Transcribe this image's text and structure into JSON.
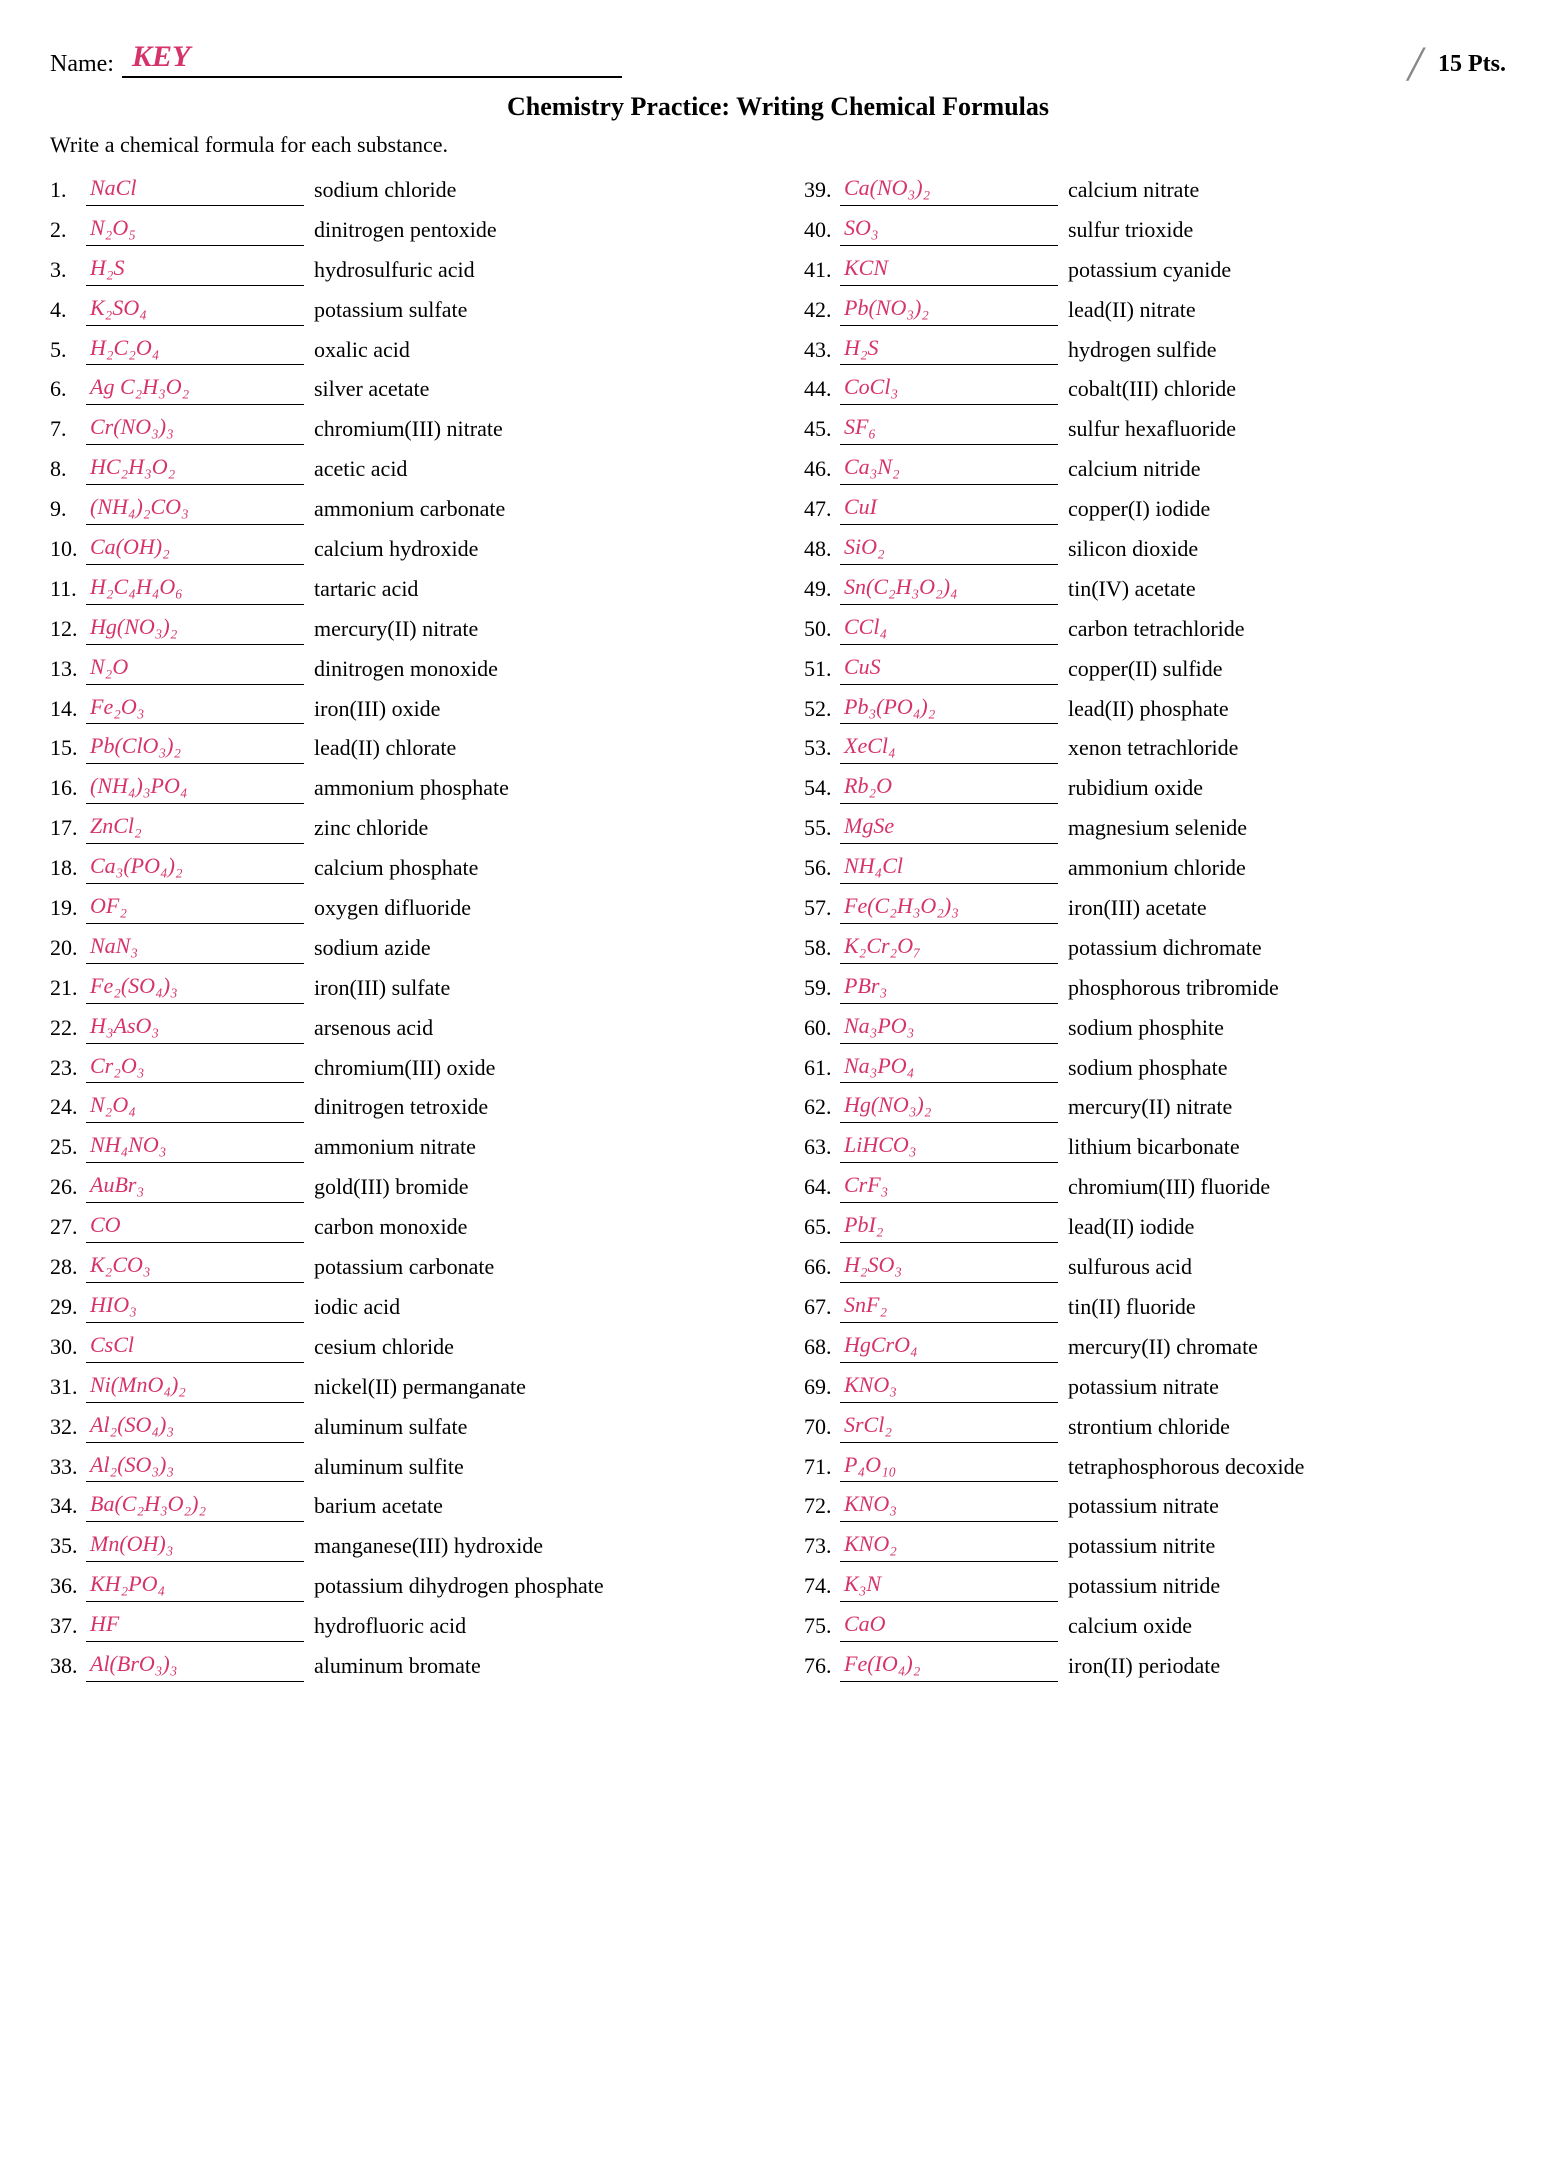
{
  "header": {
    "name_label": "Name:",
    "name_value": "KEY",
    "points": "15 Pts.",
    "title": "Chemistry Practice: Writing Chemical Formulas",
    "instruction": "Write a chemical formula for each substance."
  },
  "colors": {
    "handwriting": "#d6336c",
    "text": "#000000",
    "background": "#ffffff"
  },
  "left": [
    {
      "n": "1.",
      "a": "NaCl",
      "c": "sodium chloride"
    },
    {
      "n": "2.",
      "a": "N₂O₅",
      "c": "dinitrogen pentoxide"
    },
    {
      "n": "3.",
      "a": "H₂S",
      "c": "hydrosulfuric acid"
    },
    {
      "n": "4.",
      "a": "K₂SO₄",
      "c": "potassium sulfate"
    },
    {
      "n": "5.",
      "a": "H₂C₂O₄",
      "c": "oxalic acid"
    },
    {
      "n": "6.",
      "a": "Ag C₂H₃O₂",
      "c": "silver acetate"
    },
    {
      "n": "7.",
      "a": "Cr(NO₃)₃",
      "c": "chromium(III) nitrate"
    },
    {
      "n": "8.",
      "a": "HC₂H₃O₂",
      "c": "acetic acid"
    },
    {
      "n": "9.",
      "a": "(NH₄)₂CO₃",
      "c": "ammonium carbonate"
    },
    {
      "n": "10.",
      "a": "Ca(OH)₂",
      "c": "calcium hydroxide"
    },
    {
      "n": "11.",
      "a": "H₂C₄H₄O₆",
      "c": "tartaric acid"
    },
    {
      "n": "12.",
      "a": "Hg(NO₃)₂",
      "c": "mercury(II) nitrate"
    },
    {
      "n": "13.",
      "a": "N₂O",
      "c": "dinitrogen monoxide"
    },
    {
      "n": "14.",
      "a": "Fe₂O₃",
      "c": "iron(III) oxide"
    },
    {
      "n": "15.",
      "a": "Pb(ClO₃)₂",
      "c": "lead(II) chlorate"
    },
    {
      "n": "16.",
      "a": "(NH₄)₃PO₄",
      "c": "ammonium phosphate"
    },
    {
      "n": "17.",
      "a": "ZnCl₂",
      "c": "zinc chloride"
    },
    {
      "n": "18.",
      "a": "Ca₃(PO₄)₂",
      "c": "calcium phosphate"
    },
    {
      "n": "19.",
      "a": "OF₂",
      "c": "oxygen difluoride"
    },
    {
      "n": "20.",
      "a": "NaN₃",
      "c": "sodium azide"
    },
    {
      "n": "21.",
      "a": "Fe₂(SO₄)₃",
      "c": "iron(III) sulfate"
    },
    {
      "n": "22.",
      "a": "H₃AsO₃",
      "c": "arsenous acid"
    },
    {
      "n": "23.",
      "a": "Cr₂O₃",
      "c": "chromium(III) oxide"
    },
    {
      "n": "24.",
      "a": "N₂O₄",
      "c": "dinitrogen tetroxide"
    },
    {
      "n": "25.",
      "a": "NH₄NO₃",
      "c": "ammonium nitrate"
    },
    {
      "n": "26.",
      "a": "AuBr₃",
      "c": "gold(III) bromide"
    },
    {
      "n": "27.",
      "a": "CO",
      "c": "carbon monoxide"
    },
    {
      "n": "28.",
      "a": "K₂CO₃",
      "c": "potassium carbonate"
    },
    {
      "n": "29.",
      "a": "HIO₃",
      "c": "iodic acid"
    },
    {
      "n": "30.",
      "a": "CsCl",
      "c": "cesium chloride"
    },
    {
      "n": "31.",
      "a": "Ni(MnO₄)₂",
      "c": "nickel(II) permanganate"
    },
    {
      "n": "32.",
      "a": "Al₂(SO₄)₃",
      "c": "aluminum sulfate"
    },
    {
      "n": "33.",
      "a": "Al₂(SO₃)₃",
      "c": "aluminum sulfite"
    },
    {
      "n": "34.",
      "a": "Ba(C₂H₃O₂)₂",
      "c": "barium acetate"
    },
    {
      "n": "35.",
      "a": "Mn(OH)₃",
      "c": "manganese(III) hydroxide"
    },
    {
      "n": "36.",
      "a": "KH₂PO₄",
      "c": "potassium dihydrogen phosphate"
    },
    {
      "n": "37.",
      "a": "HF",
      "c": "hydrofluoric acid"
    },
    {
      "n": "38.",
      "a": "Al(BrO₃)₃",
      "c": "aluminum bromate"
    }
  ],
  "right": [
    {
      "n": "39.",
      "a": "Ca(NO₃)₂",
      "c": "calcium nitrate"
    },
    {
      "n": "40.",
      "a": "SO₃",
      "c": "sulfur trioxide"
    },
    {
      "n": "41.",
      "a": "KCN",
      "c": "potassium cyanide"
    },
    {
      "n": "42.",
      "a": "Pb(NO₃)₂",
      "c": "lead(II) nitrate"
    },
    {
      "n": "43.",
      "a": "H₂S",
      "c": "hydrogen sulfide"
    },
    {
      "n": "44.",
      "a": "CoCl₃",
      "c": "cobalt(III) chloride"
    },
    {
      "n": "45.",
      "a": "SF₆",
      "c": "sulfur hexafluoride"
    },
    {
      "n": "46.",
      "a": "Ca₃N₂",
      "c": "calcium nitride"
    },
    {
      "n": "47.",
      "a": "CuI",
      "c": "copper(I) iodide"
    },
    {
      "n": "48.",
      "a": "SiO₂",
      "c": "silicon dioxide"
    },
    {
      "n": "49.",
      "a": "Sn(C₂H₃O₂)₄",
      "c": "tin(IV) acetate"
    },
    {
      "n": "50.",
      "a": "CCl₄",
      "c": "carbon tetrachloride"
    },
    {
      "n": "51.",
      "a": "CuS",
      "c": "copper(II) sulfide"
    },
    {
      "n": "52.",
      "a": "Pb₃(PO₄)₂",
      "c": "lead(II) phosphate"
    },
    {
      "n": "53.",
      "a": "XeCl₄",
      "c": "xenon tetrachloride"
    },
    {
      "n": "54.",
      "a": "Rb₂O",
      "c": "rubidium oxide"
    },
    {
      "n": "55.",
      "a": "MgSe",
      "c": "magnesium selenide"
    },
    {
      "n": "56.",
      "a": "NH₄Cl",
      "c": "ammonium chloride"
    },
    {
      "n": "57.",
      "a": "Fe(C₂H₃O₂)₃",
      "c": "iron(III) acetate"
    },
    {
      "n": "58.",
      "a": "K₂Cr₂O₇",
      "c": "potassium dichromate"
    },
    {
      "n": "59.",
      "a": "PBr₃",
      "c": "phosphorous tribromide"
    },
    {
      "n": "60.",
      "a": "Na₃PO₃",
      "c": "sodium phosphite"
    },
    {
      "n": "61.",
      "a": "Na₃PO₄",
      "c": "sodium phosphate"
    },
    {
      "n": "62.",
      "a": "Hg(NO₃)₂",
      "c": "mercury(II) nitrate"
    },
    {
      "n": "63.",
      "a": "LiHCO₃",
      "c": "lithium bicarbonate"
    },
    {
      "n": "64.",
      "a": "CrF₃",
      "c": "chromium(III) fluoride"
    },
    {
      "n": "65.",
      "a": "PbI₂",
      "c": "lead(II) iodide"
    },
    {
      "n": "66.",
      "a": "H₂SO₃",
      "c": "sulfurous acid"
    },
    {
      "n": "67.",
      "a": "SnF₂",
      "c": "tin(II) fluoride"
    },
    {
      "n": "68.",
      "a": "HgCrO₄",
      "c": "mercury(II) chromate"
    },
    {
      "n": "69.",
      "a": "KNO₃",
      "c": "potassium nitrate"
    },
    {
      "n": "70.",
      "a": "SrCl₂",
      "c": "strontium chloride"
    },
    {
      "n": "71.",
      "a": "P₄O₁₀",
      "c": "tetraphosphorous decoxide"
    },
    {
      "n": "72.",
      "a": "KNO₃",
      "c": "potassium nitrate"
    },
    {
      "n": "73.",
      "a": "KNO₂",
      "c": "potassium nitrite"
    },
    {
      "n": "74.",
      "a": "K₃N",
      "c": "potassium nitride"
    },
    {
      "n": "75.",
      "a": "CaO",
      "c": "calcium oxide"
    },
    {
      "n": "76.",
      "a": "Fe(IO₄)₂",
      "c": "iron(II) periodate"
    }
  ]
}
